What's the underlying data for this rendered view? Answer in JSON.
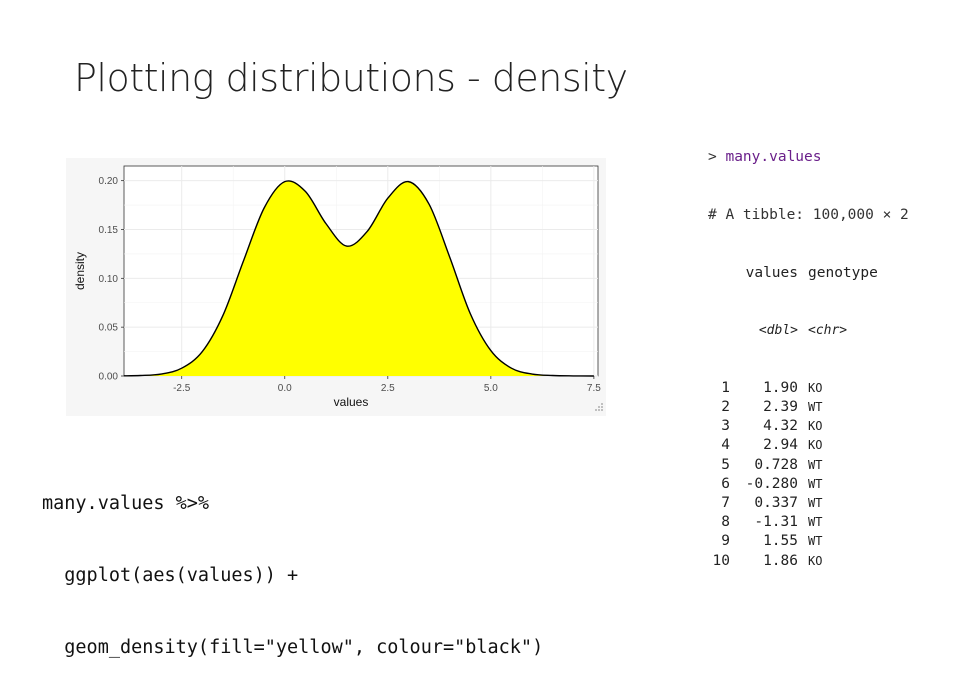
{
  "slide": {
    "title": "Plotting distributions - density"
  },
  "console": {
    "prompt": ">",
    "command": "many.values",
    "tibble_line": "# A tibble: 100,000 × 2",
    "columns": [
      "values",
      "genotype"
    ],
    "types": [
      "<dbl>",
      "<chr>"
    ],
    "rows": [
      {
        "n": "1",
        "values": "1.90",
        "genotype": "KO"
      },
      {
        "n": "2",
        "values": "2.39",
        "genotype": "WT"
      },
      {
        "n": "3",
        "values": "4.32",
        "genotype": "KO"
      },
      {
        "n": "4",
        "values": "2.94",
        "genotype": "KO"
      },
      {
        "n": "5",
        "values": "0.728",
        "genotype": "WT"
      },
      {
        "n": "6",
        "values": "-0.280",
        "genotype": "WT"
      },
      {
        "n": "7",
        "values": "0.337",
        "genotype": "WT"
      },
      {
        "n": "8",
        "values": "-1.31",
        "genotype": "WT"
      },
      {
        "n": "9",
        "values": "1.55",
        "genotype": "WT"
      },
      {
        "n": "10",
        "values": "1.86",
        "genotype": "KO"
      }
    ]
  },
  "code": {
    "lines": [
      "many.values %>%",
      "  ggplot(aes(values)) +",
      "  geom_density(fill=\"yellow\", colour=\"black\")"
    ]
  },
  "chart_data": {
    "type": "area",
    "title": "",
    "xlabel": "values",
    "ylabel": "density",
    "xlim": [
      -3.9,
      7.6
    ],
    "ylim": [
      0,
      0.215
    ],
    "x_ticks": [
      -2.5,
      0.0,
      2.5,
      5.0,
      7.5
    ],
    "x_tick_labels": [
      "-2.5",
      "0.0",
      "2.5",
      "5.0",
      "7.5"
    ],
    "y_ticks": [
      0.0,
      0.05,
      0.1,
      0.15,
      0.2
    ],
    "y_tick_labels": [
      "0.00",
      "0.05",
      "0.10",
      "0.15",
      "0.20"
    ],
    "grid": true,
    "fill": "#ffff00",
    "stroke": "#000000",
    "x": [
      -3.9,
      -3.5,
      -3.0,
      -2.5,
      -2.0,
      -1.5,
      -1.0,
      -0.5,
      0.0,
      0.5,
      1.0,
      1.5,
      2.0,
      2.5,
      3.0,
      3.5,
      4.0,
      4.5,
      5.0,
      5.5,
      6.0,
      6.5,
      7.0,
      7.5
    ],
    "values": [
      0.0002,
      0.0005,
      0.002,
      0.008,
      0.025,
      0.062,
      0.118,
      0.172,
      0.199,
      0.189,
      0.156,
      0.133,
      0.148,
      0.182,
      0.199,
      0.176,
      0.122,
      0.064,
      0.026,
      0.008,
      0.002,
      0.0005,
      0.0001,
      0.0
    ]
  },
  "colors": {
    "plot_bg": "#ffffff",
    "grid": "#ebebeb",
    "axis_text": "#4d4d4d",
    "fill": "#ffff00"
  }
}
